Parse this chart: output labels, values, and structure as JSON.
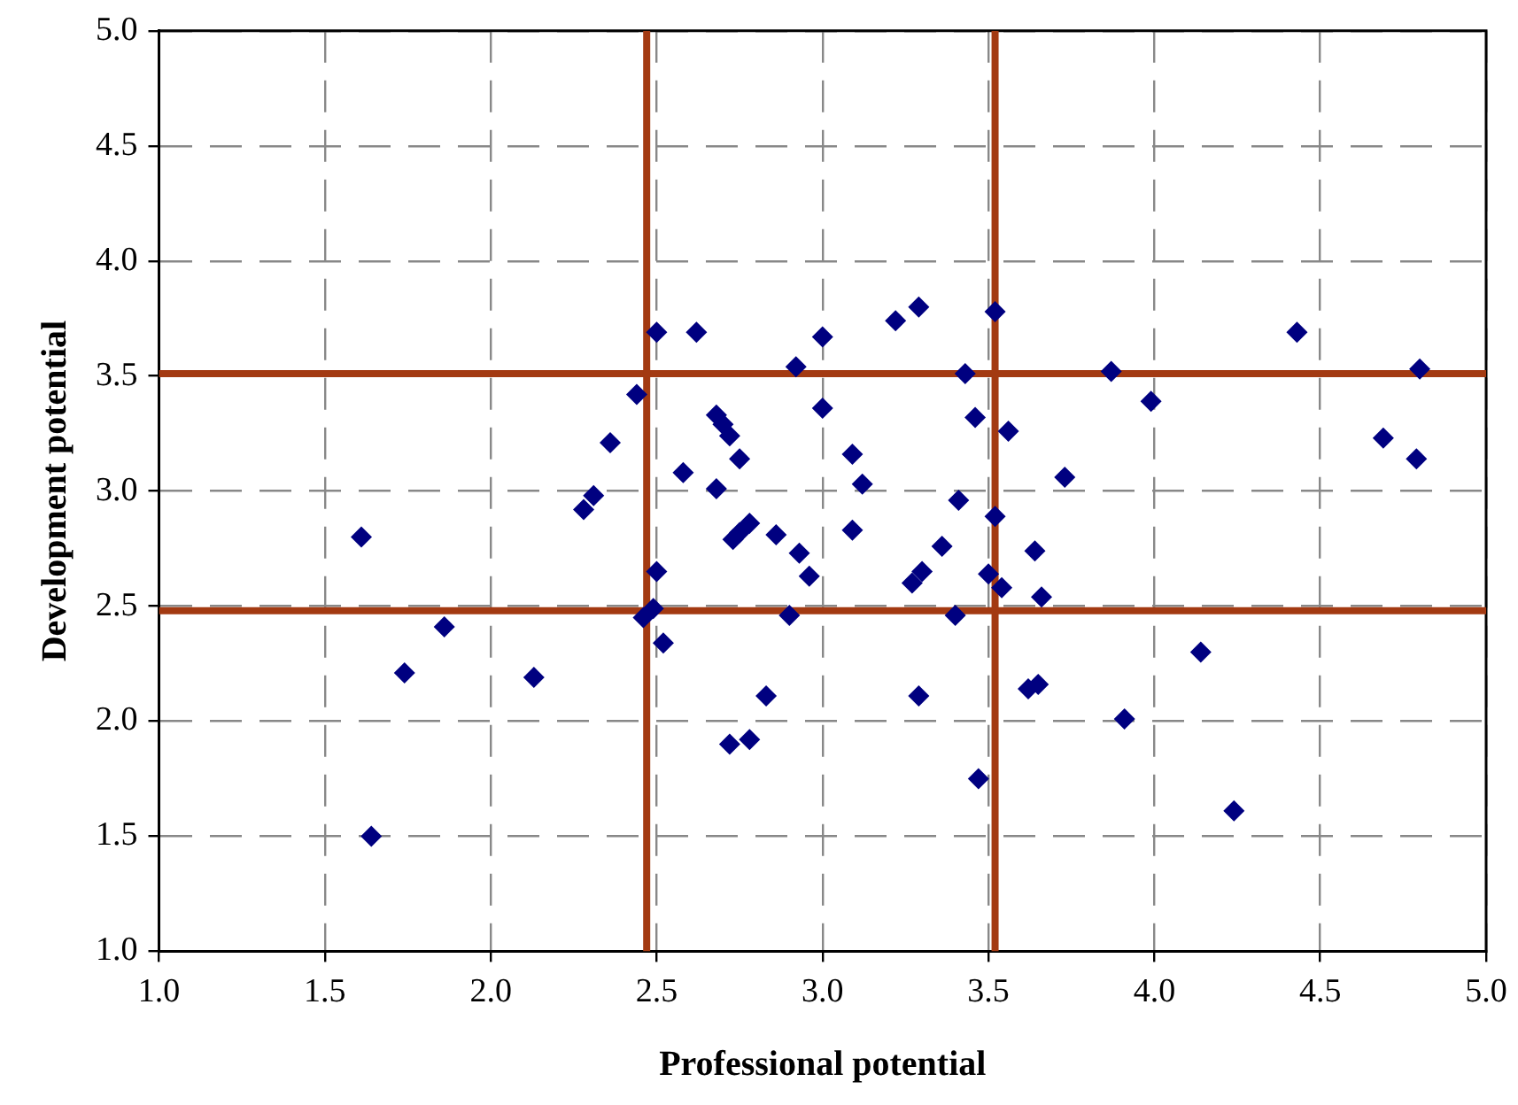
{
  "chart_data": {
    "type": "scatter",
    "xlabel": "Professional potential",
    "ylabel": "Development potential",
    "xlim": [
      1.0,
      5.0
    ],
    "ylim": [
      1.0,
      5.0
    ],
    "xticks": [
      {
        "value": 1,
        "label": "1.0"
      },
      1.5,
      {
        "value": 2,
        "label": "2.0"
      },
      2.5,
      {
        "value": 3,
        "label": "3.0"
      },
      3.5,
      {
        "value": 4,
        "label": "4.0"
      },
      4.5,
      {
        "value": 5,
        "label": "5.0"
      }
    ],
    "yticks": [
      {
        "value": 1,
        "label": "1.0"
      },
      1.5,
      {
        "value": 2,
        "label": "2.0"
      },
      2.5,
      {
        "value": 3,
        "label": "3.0"
      },
      3.5,
      {
        "value": 4,
        "label": "4.0"
      },
      4.5,
      {
        "value": 5,
        "label": "5.0"
      }
    ],
    "grid": true,
    "legend": false,
    "marker": "diamond",
    "series": [
      {
        "color": "#000080",
        "x": [
          1.61,
          1.64,
          1.74,
          1.86,
          2.13,
          2.28,
          2.31,
          2.36,
          2.5,
          2.62,
          3.0,
          3.22,
          3.29,
          3.52,
          2.92,
          3.43,
          2.44,
          3.0,
          2.68,
          2.7,
          2.72,
          3.46,
          3.56,
          2.75,
          3.09,
          3.12,
          2.58,
          2.68,
          3.41,
          3.52,
          2.78,
          2.75,
          2.73,
          2.86,
          2.93,
          2.96,
          3.09,
          3.36,
          3.64,
          3.3,
          3.27,
          3.5,
          3.54,
          3.66,
          2.5,
          2.49,
          2.46,
          2.52,
          2.9,
          3.4,
          2.83,
          3.29,
          3.62,
          3.65,
          2.72,
          2.78,
          3.47,
          4.43,
          3.87,
          4.8,
          3.99,
          4.69,
          4.79,
          3.73,
          4.14,
          3.91,
          4.24
        ],
        "values": [
          2.8,
          1.5,
          2.21,
          2.41,
          2.19,
          2.92,
          2.98,
          3.21,
          3.69,
          3.69,
          3.67,
          3.74,
          3.8,
          3.78,
          3.54,
          3.51,
          3.42,
          3.36,
          3.33,
          3.29,
          3.24,
          3.32,
          3.26,
          3.14,
          3.16,
          3.03,
          3.08,
          3.01,
          2.96,
          2.89,
          2.86,
          2.82,
          2.79,
          2.81,
          2.73,
          2.63,
          2.83,
          2.76,
          2.74,
          2.65,
          2.6,
          2.64,
          2.58,
          2.54,
          2.65,
          2.49,
          2.45,
          2.34,
          2.46,
          2.46,
          2.11,
          2.11,
          2.14,
          2.16,
          1.9,
          1.92,
          1.75,
          3.69,
          3.52,
          3.53,
          3.39,
          3.23,
          3.14,
          3.06,
          2.3,
          2.01,
          1.61
        ]
      }
    ],
    "ref_lines": [
      {
        "axis": "x",
        "value": 2.47,
        "color": "#a33a12"
      },
      {
        "axis": "x",
        "value": 3.52,
        "color": "#a33a12"
      },
      {
        "axis": "y",
        "value": 2.48,
        "color": "#a33a12"
      },
      {
        "axis": "y",
        "value": 3.51,
        "color": "#a33a12"
      }
    ]
  }
}
